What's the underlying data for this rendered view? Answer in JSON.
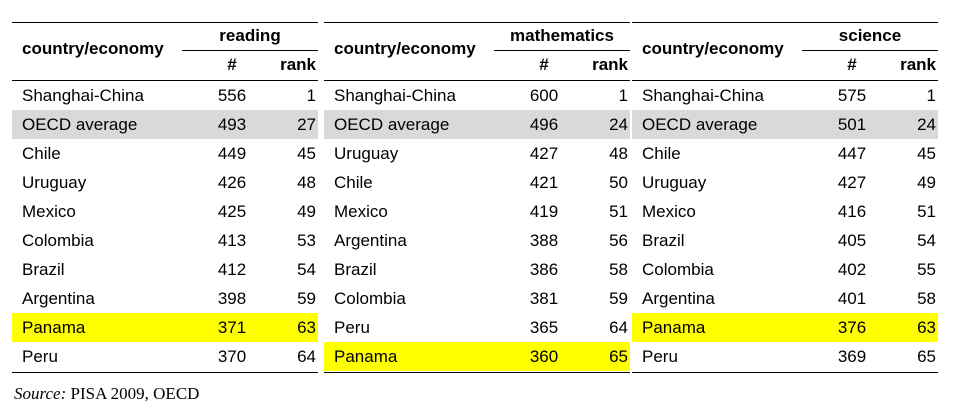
{
  "panels": [
    {
      "header": "country/economy",
      "subject": "reading",
      "score_header": "#",
      "rank_header": "rank",
      "rows": [
        [
          "Shanghai-China",
          556,
          1
        ],
        [
          "OECD average",
          493,
          27
        ],
        [
          "Chile",
          449,
          45
        ],
        [
          "Uruguay",
          426,
          48
        ],
        [
          "Mexico",
          425,
          49
        ],
        [
          "Colombia",
          413,
          53
        ],
        [
          "Brazil",
          412,
          54
        ],
        [
          "Argentina",
          398,
          59
        ],
        [
          "Panama",
          371,
          63
        ],
        [
          "Peru",
          370,
          64
        ]
      ]
    },
    {
      "header": "country/economy",
      "subject": "mathematics",
      "score_header": "#",
      "rank_header": "rank",
      "rows": [
        [
          "Shanghai-China",
          600,
          1
        ],
        [
          "OECD average",
          496,
          24
        ],
        [
          "Uruguay",
          427,
          48
        ],
        [
          "Chile",
          421,
          50
        ],
        [
          "Mexico",
          419,
          51
        ],
        [
          "Argentina",
          388,
          56
        ],
        [
          "Brazil",
          386,
          58
        ],
        [
          "Colombia",
          381,
          59
        ],
        [
          "Peru",
          365,
          64
        ],
        [
          "Panama",
          360,
          65
        ]
      ]
    },
    {
      "header": "country/economy",
      "subject": "science",
      "score_header": "#",
      "rank_header": "rank",
      "rows": [
        [
          "Shanghai-China",
          575,
          1
        ],
        [
          "OECD average",
          501,
          24
        ],
        [
          "Chile",
          447,
          45
        ],
        [
          "Uruguay",
          427,
          49
        ],
        [
          "Mexico",
          416,
          51
        ],
        [
          "Brazil",
          405,
          54
        ],
        [
          "Colombia",
          402,
          55
        ],
        [
          "Argentina",
          401,
          58
        ],
        [
          "Panama",
          376,
          63
        ],
        [
          "Peru",
          369,
          65
        ]
      ]
    }
  ],
  "source": {
    "label": "Source:",
    "text": "PISA 2009, OECD"
  }
}
